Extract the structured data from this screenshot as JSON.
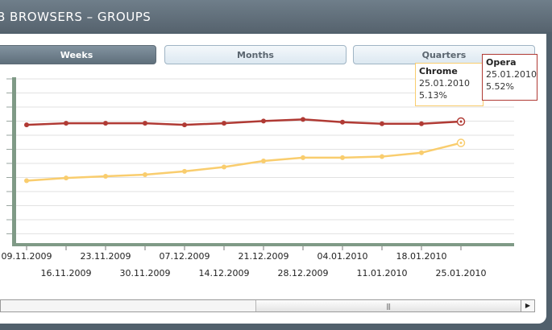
{
  "window": {
    "title": "B BROWSERS – GROUPS"
  },
  "tabs": [
    {
      "label": "Weeks",
      "active": true
    },
    {
      "label": "Months",
      "active": false
    },
    {
      "label": "Quarters",
      "active": false
    }
  ],
  "tooltips": {
    "chrome": {
      "name": "Chrome",
      "date": "25.01.2010",
      "value": "5.13%"
    },
    "opera": {
      "name": "Opera",
      "date": "25.01.2010",
      "value": "5.52%"
    }
  },
  "colors": {
    "opera_line": "#b03a34",
    "chrome_line": "#f9cd6e",
    "axis": "#7f9a86",
    "grid": "#e2e2e2"
  },
  "scrollbar": {
    "grip_icon": "grip-lines-icon",
    "right_arrow_icon": "arrow-right-icon"
  },
  "chart_data": {
    "type": "line",
    "x": [
      "09.11.2009",
      "16.11.2009",
      "23.11.2009",
      "30.11.2009",
      "07.12.2009",
      "14.12.2009",
      "21.12.2009",
      "28.12.2009",
      "04.01.2010",
      "11.01.2010",
      "18.01.2010",
      "25.01.2010"
    ],
    "series": [
      {
        "name": "Opera",
        "values": [
          5.46,
          5.49,
          5.49,
          5.49,
          5.46,
          5.49,
          5.53,
          5.56,
          5.51,
          5.48,
          5.48,
          5.52
        ]
      },
      {
        "name": "Chrome",
        "values": [
          4.44,
          4.49,
          4.52,
          4.55,
          4.61,
          4.69,
          4.8,
          4.86,
          4.86,
          4.88,
          4.95,
          5.13
        ]
      }
    ],
    "grid": true
  }
}
